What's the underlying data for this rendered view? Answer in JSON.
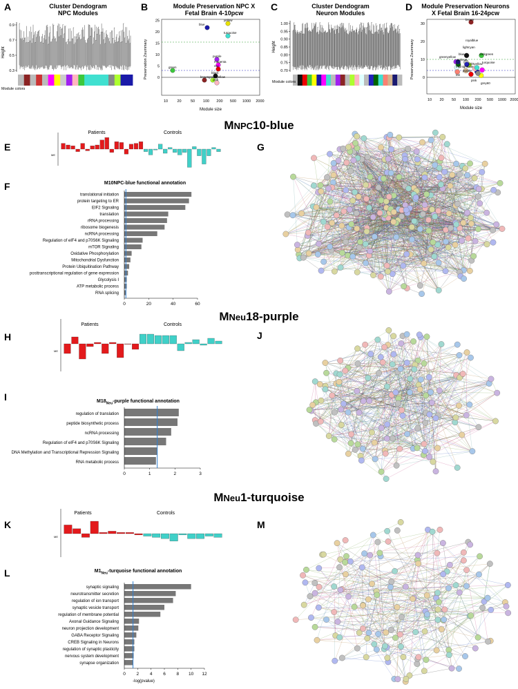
{
  "panels": {
    "A": {
      "letter": "A",
      "title_line1": "Cluster Dendogram",
      "title_line2": "NPC Modules",
      "ylabel": "Height",
      "yticks": [
        "0.9",
        "0.7",
        "0.5",
        "0.3"
      ],
      "module_label": "Module colors"
    },
    "B": {
      "letter": "B",
      "title_line1": "Module Preservation NPC X",
      "title_line2": "Fetal Brain 4-10pcw",
      "ylabel": "Preservation Zsummary",
      "xlabel": "Module size",
      "xticks": [
        "10",
        "20",
        "50",
        "100",
        "200",
        "500",
        "1000",
        "2000"
      ],
      "yticks": [
        "0",
        "5",
        "10",
        "15",
        "20",
        "25"
      ],
      "points": [
        {
          "label": "yellow",
          "color": "#e8e200"
        },
        {
          "label": "blue",
          "color": "#1a1aa8"
        },
        {
          "label": "turquoise",
          "color": "#40e0d0"
        },
        {
          "label": "purple",
          "color": "#a020f0"
        },
        {
          "label": "magenta",
          "color": "#ff00ff"
        },
        {
          "label": "red",
          "color": "#e00000"
        },
        {
          "label": "green",
          "color": "#3cc83c"
        },
        {
          "label": "black",
          "color": "#111111"
        },
        {
          "label": "brown",
          "color": "#8b2323"
        },
        {
          "label": "greenyellow",
          "color": "#adff2f"
        },
        {
          "label": "pink",
          "color": "#ffb6c1"
        }
      ]
    },
    "C": {
      "letter": "C",
      "title_line1": "Cluster Dendogram",
      "title_line2": "Neuron Modules",
      "ylabel": "Height",
      "yticks": [
        "1.00",
        "0.95",
        "0.90",
        "0.85",
        "0.80",
        "0.75",
        "0.70"
      ],
      "module_label": "Module colors"
    },
    "D": {
      "letter": "D",
      "title_line1": "Module Preservation Neurons",
      "title_line2": "X Fetal Brain 16-24pcw",
      "ylabel": "Preservation Zsummary",
      "xlabel": "Module size",
      "xticks": [
        "10",
        "20",
        "50",
        "100",
        "200",
        "500",
        "1000",
        "2000"
      ],
      "yticks": [
        "0",
        "10",
        "20",
        "30"
      ],
      "labels": [
        "brown",
        "royalblue",
        "lightcyan",
        "greenyellow",
        "blue",
        "salmon",
        "darkgreen",
        "lightyellow",
        "grey60",
        "turquoise",
        "tan",
        "midnightblue",
        "pink",
        "purple"
      ]
    },
    "E": {
      "letter": "E",
      "patients": "Patients",
      "controls": "Controls",
      "ylabel": "ME",
      "bars": [
        0.35,
        0.25,
        0.2,
        -0.15,
        0.35,
        -0.1,
        0.2,
        0.25,
        0.55,
        0.7,
        -0.2,
        0.45,
        0.4,
        -0.3,
        0.3,
        0.35,
        0.45,
        -0.15,
        -0.35,
        -0.05,
        0.3,
        -0.25,
        0.1,
        -0.2,
        -0.35,
        -0.2,
        -1.1,
        0.15,
        -0.4,
        -0.9,
        -0.4,
        0.1,
        -0.15
      ]
    },
    "F": {
      "letter": "F",
      "title": "M10NPC-blue functional annotation",
      "xticks": [
        "0",
        "20",
        "40",
        "60"
      ]
    },
    "G": {
      "letter": "G"
    },
    "H": {
      "letter": "H",
      "patients": "Patients",
      "controls": "Controls",
      "ylabel": "ME",
      "bars": [
        -0.35,
        0.25,
        -0.55,
        -0.1,
        0.05,
        -0.35,
        0.05,
        -0.5,
        0.0,
        -0.2,
        0.35,
        0.35,
        0.3,
        0.3,
        0.3,
        -0.25,
        0.05,
        0.15,
        -0.05,
        0.2,
        0.1
      ],
      "ncases": 10
    },
    "I": {
      "letter": "I",
      "title_pre": "M18",
      "title_sub": "Neu",
      "title_post": "-purple functional annotation",
      "xlabel": "-log(pvalue)",
      "xticks": [
        "0",
        "1",
        "2",
        "3"
      ]
    },
    "J": {
      "letter": "J"
    },
    "K": {
      "letter": "K",
      "patients": "Patients",
      "controls": "Controls",
      "ylabel": "ME",
      "bars": [
        0.35,
        0.2,
        -0.15,
        0.5,
        0.05,
        0.1,
        0.05,
        0.05,
        -0.05,
        -0.1,
        -0.15,
        -0.2,
        -0.3,
        -0.05,
        -0.2,
        -0.2,
        -0.1,
        -0.15
      ],
      "ncases": 9
    },
    "L": {
      "letter": "L",
      "title_pre": "M1",
      "title_sub": "Neu",
      "title_post": "-turquoise functional annotation",
      "xlabel": "-log(pvalue)",
      "xticks": [
        "0",
        "2",
        "4",
        "6",
        "8",
        "10",
        "12"
      ]
    },
    "M": {
      "letter": "M"
    }
  },
  "sections": {
    "s1": {
      "pre": "M",
      "sub": "NPC",
      "post": "10-blue"
    },
    "s2": {
      "pre": "M",
      "sub": "Neu",
      "post": "18-purple"
    },
    "s3": {
      "pre": "M",
      "sub": "Neu",
      "post": "1-turquoise"
    }
  },
  "chart_data": [
    {
      "type": "bar",
      "orientation": "horizontal",
      "title": "M10NPC-blue functional annotation",
      "xlim": [
        0,
        60
      ],
      "categories": [
        "translational initiation",
        "protein targeting to ER",
        "EIF2 Signaling",
        "translation",
        "rRNA processing",
        "ribosome biogenesis",
        "ncRNA processing",
        "Regulation of eIF4 and p70S6K Signaling",
        "mTOR Signaling",
        "Oxidative Phosphorylation",
        "Mitochondrial Dysfunction",
        "Protein Ubiquitination Pathway",
        "posttranscriptional regulation of gene expression",
        "Glycolysis I",
        "ATP metabolic process",
        "RNA splicing"
      ],
      "values": [
        55,
        53,
        50,
        36,
        35,
        33,
        27,
        15,
        14,
        6,
        5,
        4,
        3,
        2,
        2,
        1.5
      ],
      "threshold": 1.3
    },
    {
      "type": "bar",
      "orientation": "horizontal",
      "title": "M18Neu-purple functional annotation",
      "xlabel": "-log(pvalue)",
      "xlim": [
        0,
        3
      ],
      "categories": [
        "regulation of translation",
        "peptide biosynthetic process",
        "ncRNA processing",
        "Regulation of eIF4 and p70S6K Signaling",
        "DNA Methylation and Transcriptional Repression Signaling",
        "RNA metabolic process"
      ],
      "values": [
        2.15,
        2.1,
        1.85,
        1.65,
        1.3,
        1.25
      ],
      "threshold": 1.3
    },
    {
      "type": "bar",
      "orientation": "horizontal",
      "title": "M1Neu-turquoise functional annotation",
      "xlabel": "-log(pvalue)",
      "xlim": [
        0,
        12
      ],
      "categories": [
        "synaptic signaling",
        "neurotransmitter secretion",
        "regulation of ion transport",
        "synaptic vesicle transport",
        "regulation of membrane potential",
        "Axonal Guidance Signaling",
        "neuron projection development",
        "GABA Receptor Signaling",
        "CREB Signaling in Neurons",
        "regulation of synaptic plasticity",
        "nervous system development",
        "synapse organization"
      ],
      "values": [
        10,
        7.7,
        7.3,
        6,
        5.4,
        2.2,
        2.1,
        1.8,
        1.5,
        1.5,
        1.4,
        1.3
      ],
      "threshold": 1.3
    }
  ]
}
